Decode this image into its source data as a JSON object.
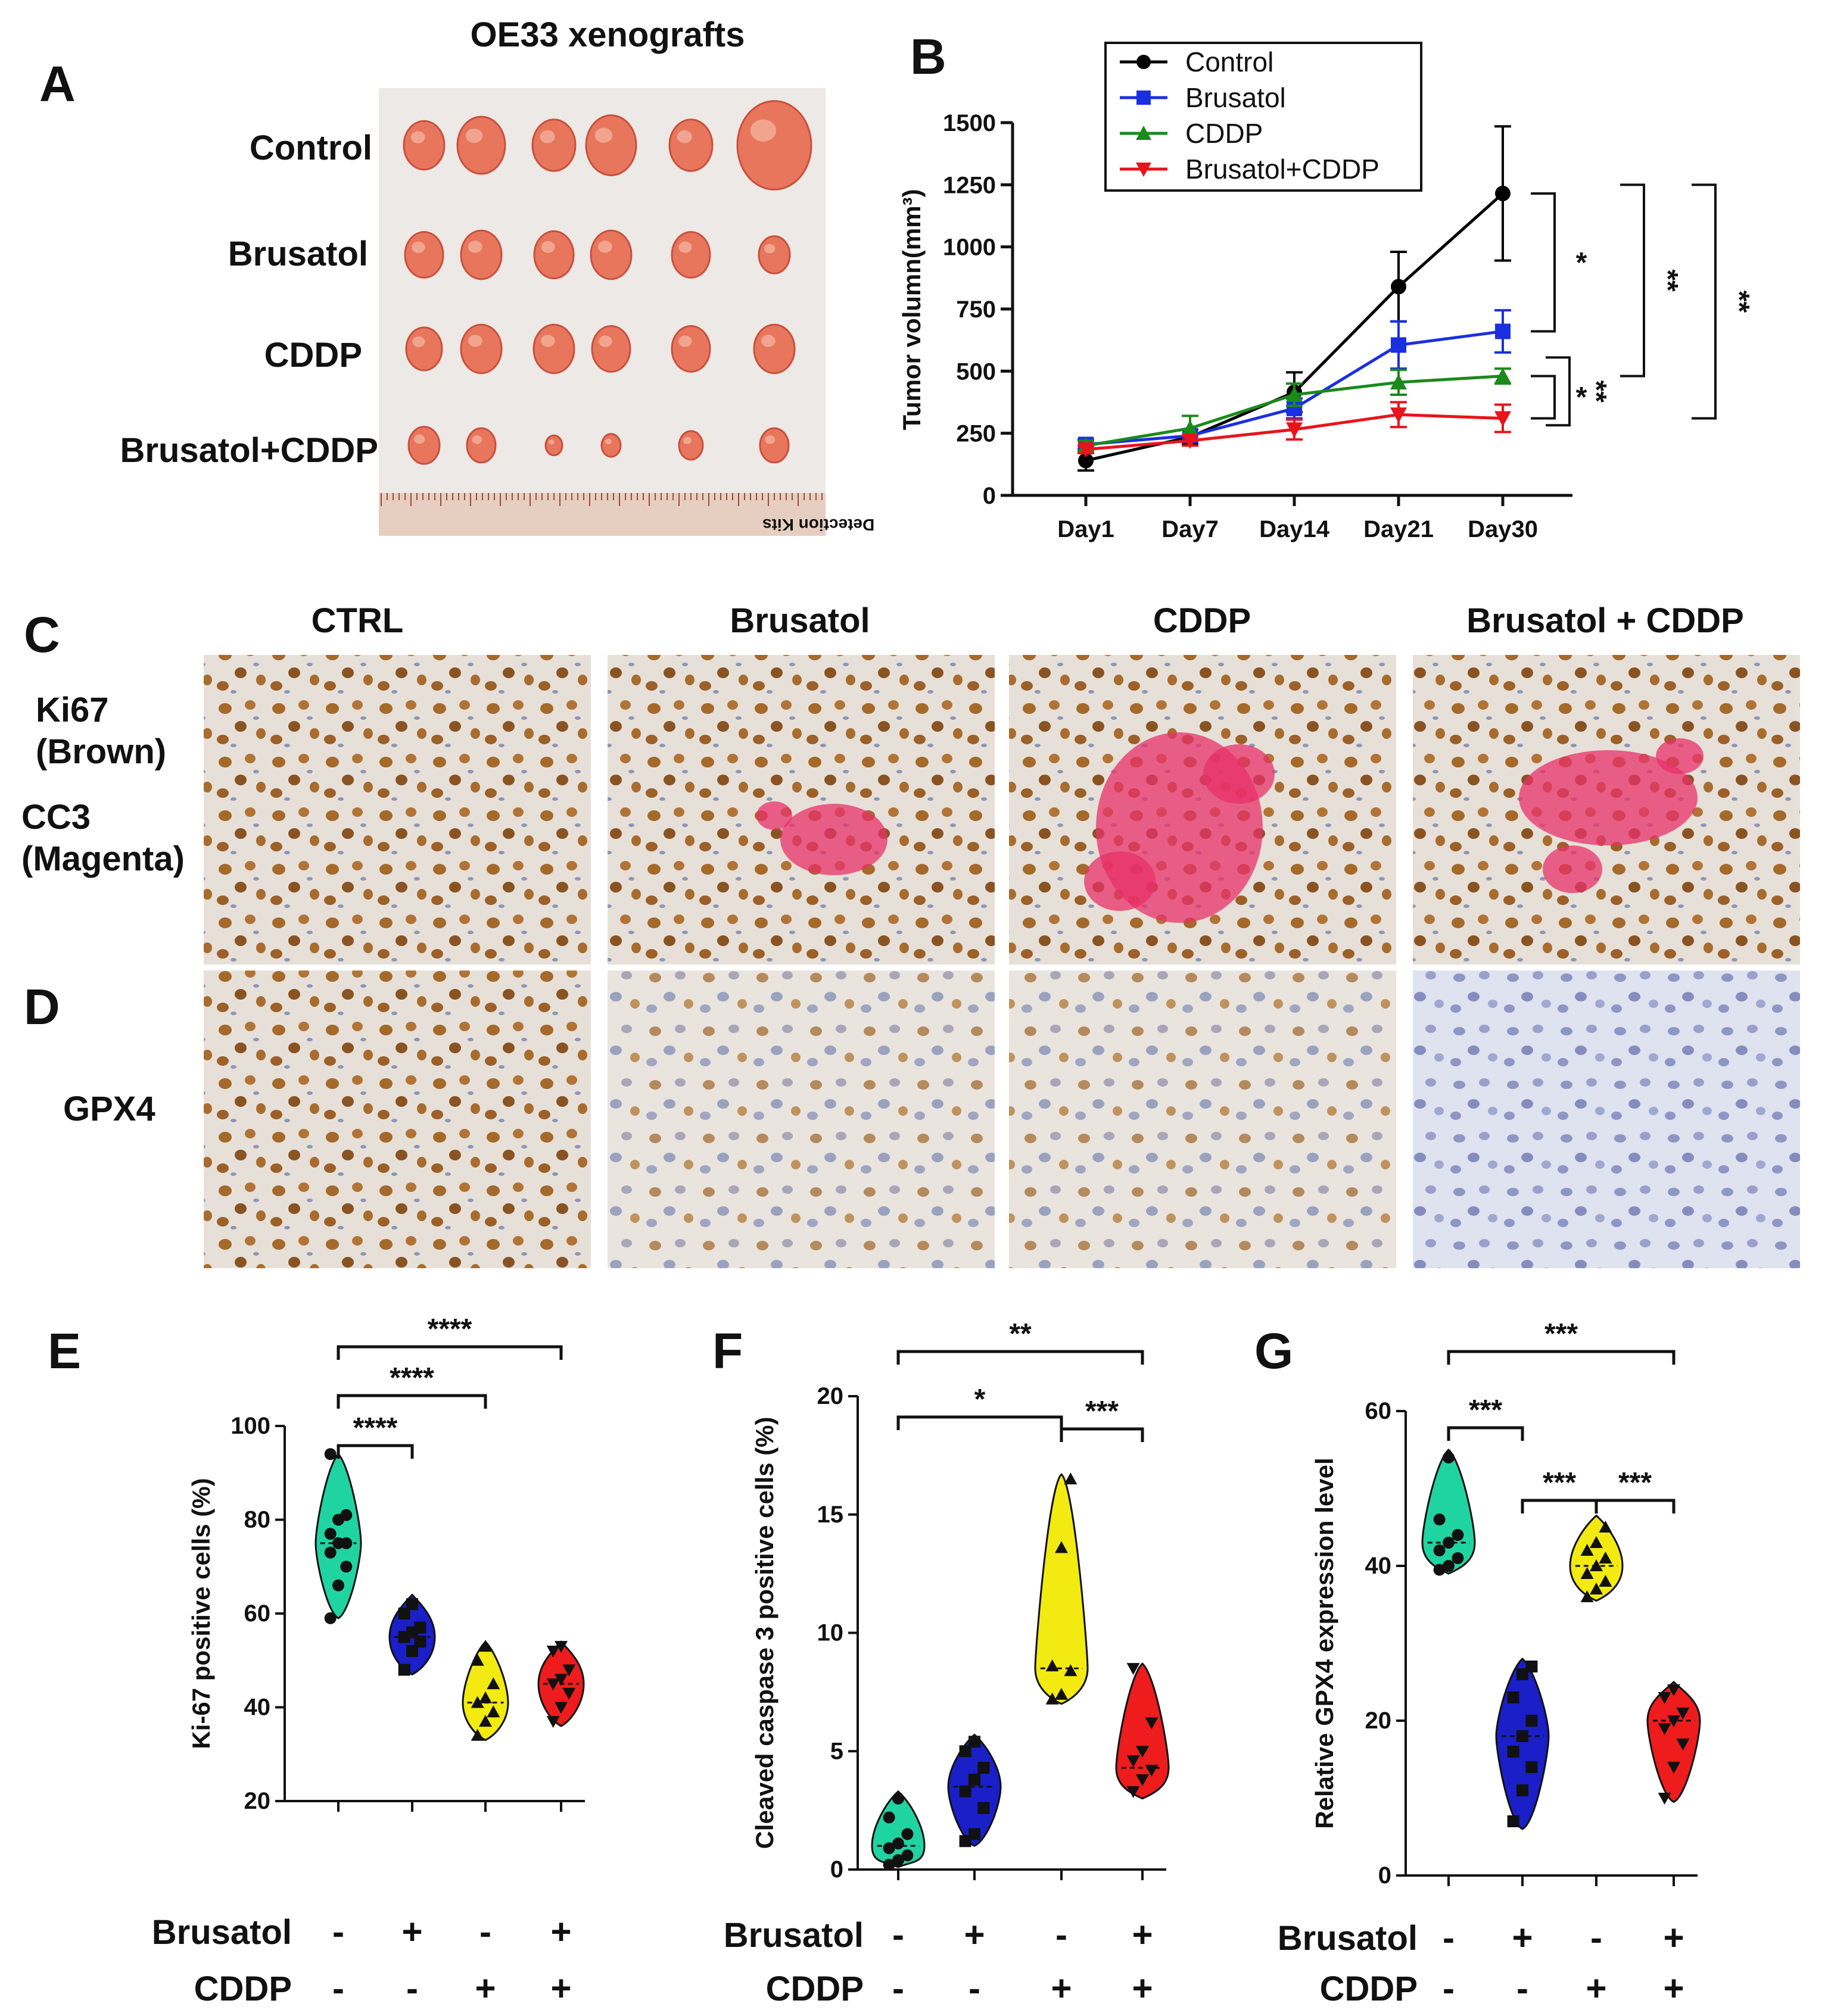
{
  "panels": {
    "A": {
      "letter": "A",
      "title": "OE33 xenografts",
      "rows": [
        "Control",
        "Brusatol",
        "CDDP",
        "Brusatol+CDDP"
      ],
      "ruler_text": "Detection Kits"
    },
    "B": {
      "letter": "B"
    },
    "C": {
      "letter": "C",
      "columns": [
        "CTRL",
        "Brusatol",
        "CDDP",
        "Brusatol + CDDP"
      ],
      "stain_lines": [
        "Ki67",
        "(Brown)",
        "CC3",
        "(Magenta)"
      ]
    },
    "D": {
      "letter": "D",
      "stain": "GPX4"
    },
    "E": {
      "letter": "E"
    },
    "F": {
      "letter": "F"
    },
    "G": {
      "letter": "G"
    }
  },
  "treatment_labels": {
    "brusatol": "Brusatol",
    "cddp": "CDDP",
    "brusatol_signs": [
      "-",
      "+",
      "-",
      "+"
    ],
    "cddp_signs": [
      "-",
      "-",
      "+",
      "+"
    ]
  },
  "colors": {
    "control": "#000000",
    "brusatol": "#1a2fe0",
    "cddp": "#1a8a1a",
    "combo": "#e8141c",
    "violin_ctrl": "#1fd4a0",
    "violin_brus": "#1a1fc8",
    "violin_cddp": "#f2ea10",
    "violin_combo": "#ee1c1c",
    "ki67_brown": "#9a5a1c",
    "cc3_magenta": "#e8326a"
  },
  "chart_data": [
    {
      "id": "B",
      "type": "line",
      "categories": [
        "Day1",
        "Day7",
        "Day14",
        "Day21",
        "Day30"
      ],
      "ylabel": "Tumor volumn(mm³)",
      "ylim": [
        0,
        1500
      ],
      "yticks": [
        0,
        250,
        500,
        750,
        1000,
        1250,
        1500
      ],
      "series": [
        {
          "name": "Control",
          "marker": "circle",
          "values": [
            140,
            235,
            415,
            840,
            1215
          ],
          "errors": [
            40,
            30,
            80,
            140,
            270
          ]
        },
        {
          "name": "Brusatol",
          "marker": "square",
          "values": [
            205,
            240,
            350,
            605,
            660
          ],
          "errors": [
            20,
            25,
            40,
            95,
            85
          ]
        },
        {
          "name": "CDDP",
          "marker": "triangle-up",
          "values": [
            200,
            270,
            405,
            455,
            480
          ],
          "errors": [
            20,
            50,
            45,
            50,
            30
          ]
        },
        {
          "name": "Brusatol+CDDP",
          "marker": "triangle-down",
          "values": [
            185,
            220,
            265,
            325,
            310
          ],
          "errors": [
            15,
            20,
            40,
            50,
            55
          ]
        }
      ],
      "significance": [
        "*",
        "**",
        "*",
        "**",
        "**"
      ],
      "legend": "top"
    },
    {
      "id": "E",
      "type": "violin",
      "ylabel": "Ki-67 positive cells (%)",
      "ylim": [
        20,
        100
      ],
      "yticks": [
        20,
        40,
        60,
        80,
        100
      ],
      "groups": [
        {
          "min": 59,
          "max": 94,
          "median": 75,
          "points": [
            59,
            66,
            70,
            73,
            75,
            75,
            77,
            80,
            81,
            94
          ]
        },
        {
          "min": 47,
          "max": 64,
          "median": 55,
          "points": [
            48,
            52,
            54,
            55,
            56,
            57,
            60,
            62
          ]
        },
        {
          "min": 33,
          "max": 54,
          "median": 41,
          "points": [
            34,
            37,
            39,
            41,
            42,
            45,
            50,
            53
          ]
        },
        {
          "min": 36,
          "max": 54,
          "median": 45,
          "points": [
            37,
            40,
            43,
            45,
            46,
            48,
            52,
            53
          ]
        }
      ],
      "significance": [
        "****",
        "****",
        "****"
      ]
    },
    {
      "id": "F",
      "type": "violin",
      "ylabel": "Cleaved caspase 3 positive cells (%)",
      "ylim": [
        0,
        20
      ],
      "yticks": [
        0,
        5,
        10,
        15,
        20
      ],
      "groups": [
        {
          "min": 0.1,
          "max": 3.3,
          "median": 1.0,
          "points": [
            0.2,
            0.4,
            0.6,
            0.9,
            1.1,
            1.5,
            2.2,
            3.0
          ]
        },
        {
          "min": 1.0,
          "max": 5.7,
          "median": 3.5,
          "points": [
            1.2,
            1.5,
            2.6,
            3.3,
            3.8,
            4.3,
            5.0,
            5.4
          ]
        },
        {
          "min": 7.0,
          "max": 16.7,
          "median": 8.5,
          "points": [
            7.2,
            7.4,
            8.4,
            8.6,
            13.6,
            16.5
          ]
        },
        {
          "min": 3.0,
          "max": 8.7,
          "median": 4.3,
          "points": [
            3.3,
            3.8,
            4.2,
            4.6,
            5.0,
            6.2,
            8.5
          ]
        }
      ],
      "significance": [
        "*",
        "***",
        "**"
      ]
    },
    {
      "id": "G",
      "type": "violin",
      "ylabel": "Relative GPX4 expression level",
      "ylim": [
        0,
        60
      ],
      "yticks": [
        0,
        20,
        40,
        60
      ],
      "groups": [
        {
          "min": 39,
          "max": 55,
          "median": 43,
          "points": [
            39.5,
            40,
            41,
            42,
            43,
            44,
            46,
            54
          ]
        },
        {
          "min": 6,
          "max": 28,
          "median": 18,
          "points": [
            7,
            11,
            14,
            16,
            18,
            20,
            23,
            26,
            27
          ]
        },
        {
          "min": 35.5,
          "max": 46.5,
          "median": 40,
          "points": [
            36,
            37,
            38,
            39,
            40,
            41,
            42,
            43,
            45
          ]
        },
        {
          "min": 9.5,
          "max": 25,
          "median": 20,
          "points": [
            10,
            14,
            17,
            19,
            20,
            21,
            23,
            24
          ]
        }
      ],
      "significance": [
        "***",
        "***",
        "***",
        "***"
      ]
    }
  ]
}
